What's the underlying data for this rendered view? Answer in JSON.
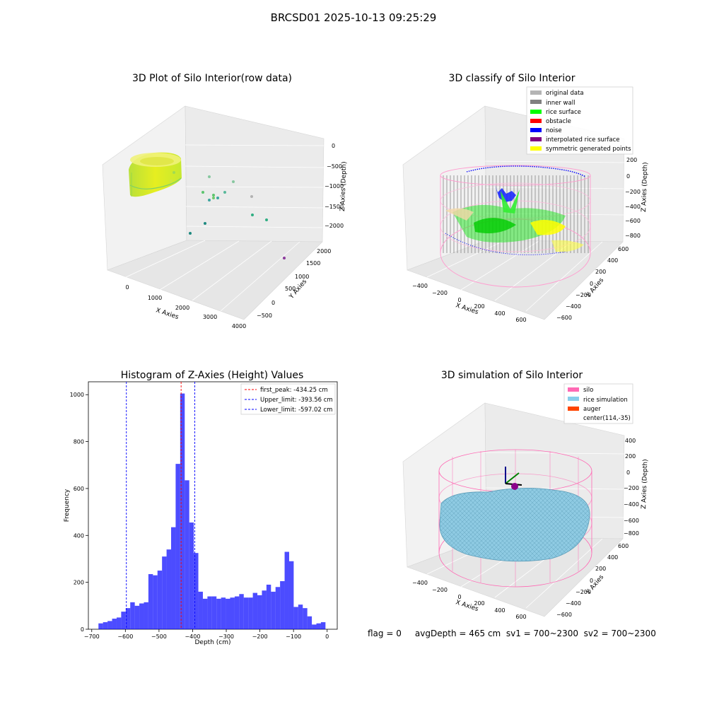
{
  "figure": {
    "title": "BRCSD01 2025-10-13 09:25:29",
    "footer": "flag = 0     avgDepth = 465 cm  sv1 = 700~2300  sv2 = 700~2300"
  },
  "panels": {
    "raw": {
      "title": "3D Plot of Silo Interior(row data)",
      "xlabel": "X Axies",
      "ylabel": "Y Axies",
      "zlabel": "Z Axies (Depth)",
      "xticks": [
        "0",
        "1000",
        "2000",
        "3000",
        "4000"
      ],
      "yticks": [
        "−500",
        "0",
        "500",
        "1000",
        "1500",
        "2000"
      ],
      "zticks": [
        "0",
        "−500",
        "−1000",
        "−1500",
        "−2000"
      ]
    },
    "classify": {
      "title": "3D classify of Silo Interior",
      "xlabel": "X Axies",
      "ylabel": "Y Axies",
      "zlabel": "Z Axies (Depth)",
      "xticks": [
        "−400",
        "−200",
        "0",
        "200",
        "400",
        "600"
      ],
      "yticks": [
        "−600",
        "−400",
        "−200",
        "0",
        "200",
        "400",
        "600"
      ],
      "zticks": [
        "200",
        "0",
        "−200",
        "−400",
        "−600",
        "−800"
      ],
      "legend": [
        {
          "label": "original data",
          "color": "#b4b4b4"
        },
        {
          "label": "inner wall",
          "color": "#808080"
        },
        {
          "label": "rice surface",
          "color": "#00ff00"
        },
        {
          "label": "obstacle",
          "color": "#ff0000"
        },
        {
          "label": "noise",
          "color": "#0000ff"
        },
        {
          "label": "interpolated rice surface",
          "color": "#800080"
        },
        {
          "label": "symmetric generated points",
          "color": "#ffff00"
        }
      ]
    },
    "simulation": {
      "title": "3D simulation of Silo Interior",
      "xlabel": "X Axies",
      "ylabel": "Y Axies",
      "zlabel": "Z Axies (Depth)",
      "xticks": [
        "−400",
        "−200",
        "0",
        "200",
        "400",
        "600"
      ],
      "yticks": [
        "−600",
        "−400",
        "−200",
        "0",
        "200",
        "400",
        "600"
      ],
      "zticks": [
        "400",
        "200",
        "0",
        "−200",
        "−400",
        "−600",
        "−800"
      ],
      "legend": [
        {
          "label": "silo",
          "color": "#ff69b4"
        },
        {
          "label": "rice simulation",
          "color": "#87ceeb"
        },
        {
          "label": "auger",
          "color": "#ff4500"
        },
        {
          "label": "center(114,-35)",
          "color": ""
        }
      ]
    }
  },
  "chart_data": {
    "type": "bar",
    "title": "Histogram of Z-Axies (Height) Values",
    "xlabel": "Depth (cm)",
    "ylabel": "Frequency",
    "xlim": [
      -710,
      30
    ],
    "ylim": [
      0,
      1055
    ],
    "xticks": [
      -700,
      -600,
      -500,
      -400,
      -300,
      -200,
      -100,
      0
    ],
    "yticks": [
      0,
      200,
      400,
      600,
      800,
      1000
    ],
    "bar_color": "#0000ff",
    "bin_start": -680,
    "bin_width": 13.5,
    "values": [
      25,
      30,
      35,
      45,
      50,
      75,
      90,
      115,
      100,
      110,
      115,
      235,
      230,
      250,
      310,
      340,
      435,
      705,
      1005,
      635,
      455,
      325,
      160,
      130,
      140,
      140,
      130,
      135,
      130,
      135,
      140,
      150,
      135,
      135,
      155,
      145,
      165,
      190,
      160,
      180,
      205,
      330,
      290,
      95,
      105,
      90,
      55,
      20,
      25,
      30
    ],
    "lines": [
      {
        "label": "first_peak: -434.25 cm",
        "x": -434.25,
        "color": "#ff0000"
      },
      {
        "label": "Upper_limit: -393.56 cm",
        "x": -393.56,
        "color": "#0000ff"
      },
      {
        "label": "Lower_limit: -597.02 cm",
        "x": -597.02,
        "color": "#0000ff"
      }
    ]
  }
}
